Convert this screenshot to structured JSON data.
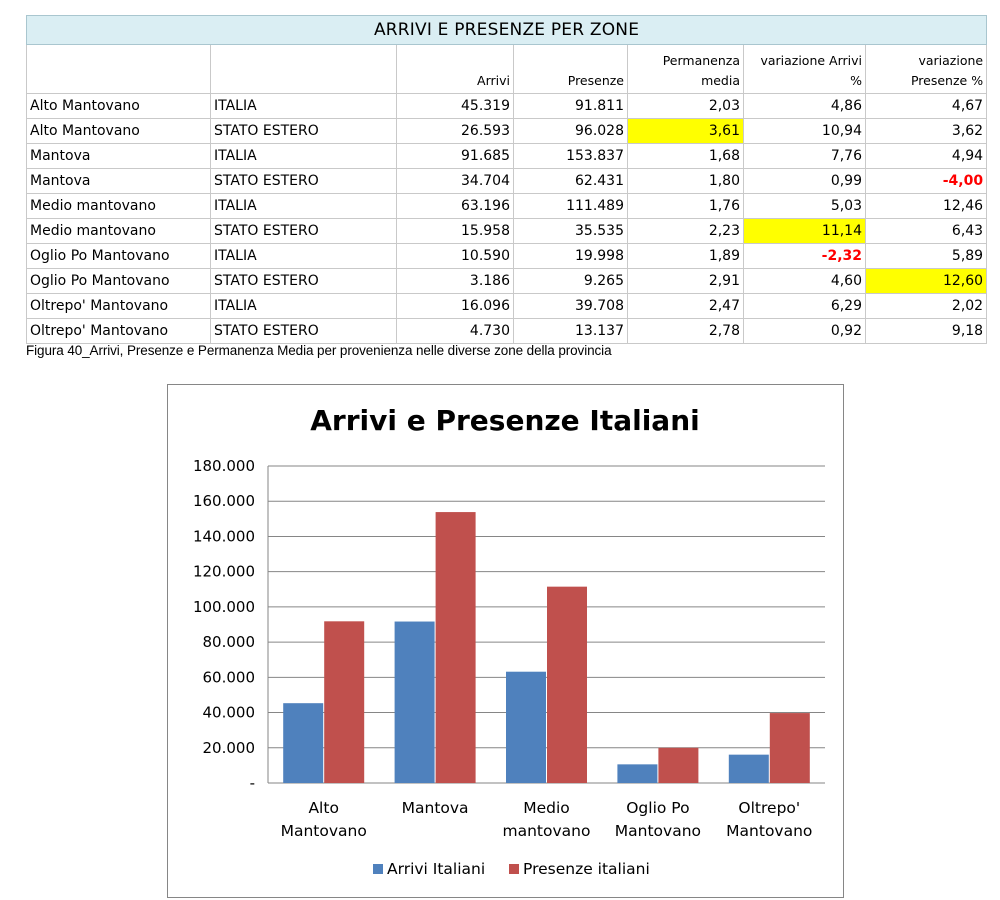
{
  "table": {
    "title": "ARRIVI E PRESENZE PER ZONE",
    "headers": [
      "",
      "",
      "Arrivi",
      "Presenze",
      "Permanenza media",
      "variazione Arrivi %",
      "variazione Presenze %"
    ],
    "rows": [
      [
        "Alto Mantovano",
        "ITALIA",
        "45.319",
        "91.811",
        "2,03",
        "4,86",
        "4,67"
      ],
      [
        "Alto Mantovano",
        "STATO ESTERO",
        "26.593",
        "96.028",
        "3,61",
        "10,94",
        "3,62"
      ],
      [
        "Mantova",
        "ITALIA",
        "91.685",
        "153.837",
        "1,68",
        "7,76",
        "4,94"
      ],
      [
        "Mantova",
        "STATO ESTERO",
        "34.704",
        "62.431",
        "1,80",
        "0,99",
        "-4,00"
      ],
      [
        "Medio mantovano",
        "ITALIA",
        "63.196",
        "111.489",
        "1,76",
        "5,03",
        "12,46"
      ],
      [
        "Medio mantovano",
        "STATO ESTERO",
        "15.958",
        "35.535",
        "2,23",
        "11,14",
        "6,43"
      ],
      [
        "Oglio Po Mantovano",
        "ITALIA",
        "10.590",
        "19.998",
        "1,89",
        "-2,32",
        "5,89"
      ],
      [
        "Oglio Po Mantovano",
        "STATO ESTERO",
        "3.186",
        "9.265",
        "2,91",
        "4,60",
        "12,60"
      ],
      [
        "Oltrepo' Mantovano",
        "ITALIA",
        "16.096",
        "39.708",
        "2,47",
        "6,29",
        "2,02"
      ],
      [
        "Oltrepo' Mantovano",
        "STATO ESTERO",
        "4.730",
        "13.137",
        "2,78",
        "0,92",
        "9,18"
      ]
    ],
    "highlighted_cells": [
      [
        1,
        4
      ],
      [
        5,
        5
      ],
      [
        7,
        6
      ]
    ],
    "negative_cells": [
      [
        3,
        6
      ],
      [
        6,
        5
      ]
    ],
    "highlight_color": "#ffff00",
    "negative_color": "#ff0000",
    "title_background": "#daeef3",
    "caption": "Figura 40_Arrivi, Presenze e Permanenza Media per provenienza nelle diverse zone della provincia"
  },
  "chart_data": {
    "type": "bar",
    "title": "Arrivi e Presenze Italiani",
    "categories": [
      [
        "Alto",
        "Mantovano"
      ],
      [
        "Mantova"
      ],
      [
        "Medio",
        "mantovano"
      ],
      [
        "Oglio Po",
        "Mantovano"
      ],
      [
        "Oltrepo'",
        "Mantovano"
      ]
    ],
    "series": [
      {
        "name": "Arrivi Italiani",
        "values": [
          45319,
          91685,
          63196,
          10590,
          16096
        ],
        "color": "#4f81bd"
      },
      {
        "name": "Presenze italiani",
        "values": [
          91811,
          153837,
          111489,
          19998,
          39708
        ],
        "color": "#c0504d"
      }
    ],
    "ylim": [
      0,
      180000
    ],
    "yticks": [
      0,
      20000,
      40000,
      60000,
      80000,
      100000,
      120000,
      140000,
      160000,
      180000
    ],
    "ytick_labels": [
      "-",
      "20.000",
      "40.000",
      "60.000",
      "80.000",
      "100.000",
      "120.000",
      "140.000",
      "160.000",
      "180.000"
    ],
    "xlabel": "",
    "ylabel": "",
    "grid": true,
    "legend_position": "bottom"
  }
}
